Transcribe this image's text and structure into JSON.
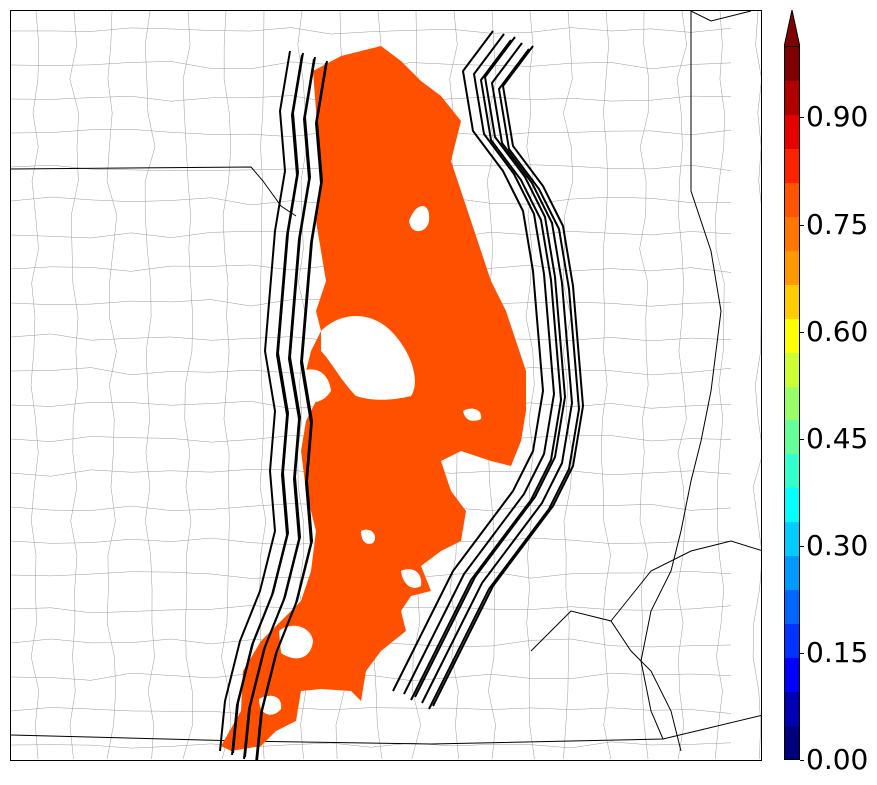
{
  "colorbar": {
    "ticks": [
      "0.00",
      "0.15",
      "0.30",
      "0.45",
      "0.60",
      "0.75",
      "0.90"
    ],
    "tick_values": [
      0.0,
      0.15,
      0.3,
      0.45,
      0.6,
      0.75,
      0.9
    ],
    "range": [
      0.0,
      1.0
    ],
    "extend": "max",
    "colormap": "jet",
    "colors": [
      "#00007f",
      "#0000b2",
      "#0000ff",
      "#0033ff",
      "#0066ff",
      "#0099ff",
      "#00ccff",
      "#00ffff",
      "#33ffcc",
      "#66ff99",
      "#99ff66",
      "#ccff33",
      "#ffff00",
      "#ffcc00",
      "#ff9900",
      "#ff7700",
      "#ff5500",
      "#ff2200",
      "#e60000",
      "#b00000",
      "#7f0000"
    ]
  },
  "map": {
    "region": "central United States (county boundaries)",
    "shaded_value_color": "#ff5000",
    "outline_color": "#000000"
  }
}
